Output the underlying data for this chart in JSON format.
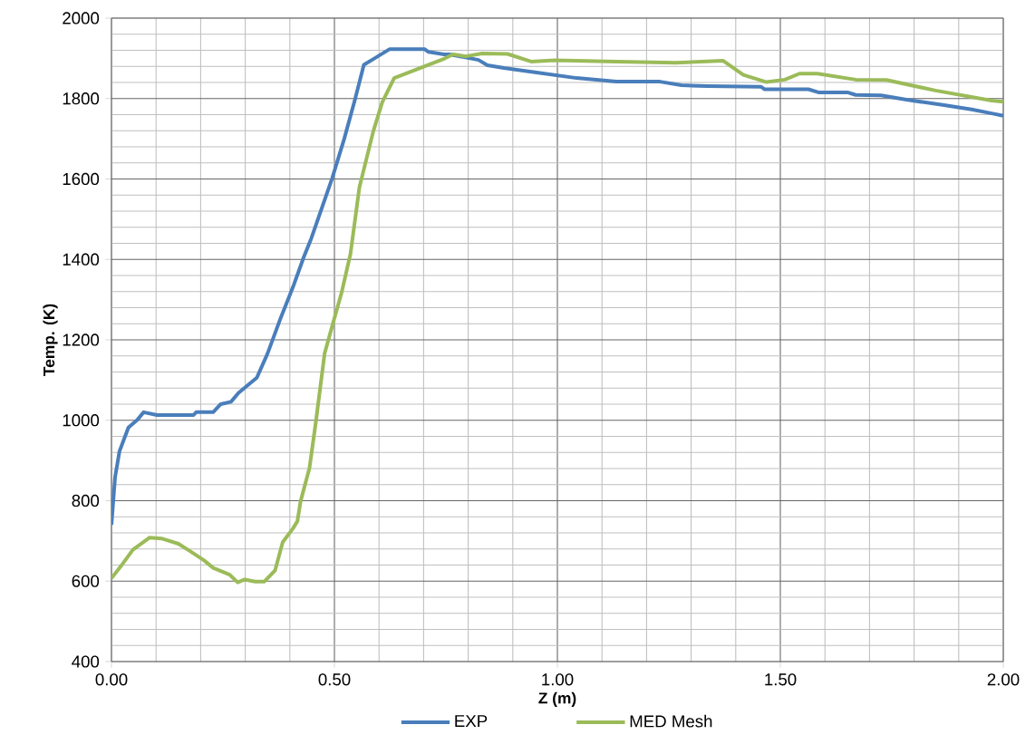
{
  "chart_data": {
    "type": "line",
    "xlabel": "Z (m)",
    "ylabel": "Temp. (K)",
    "xlim": [
      0,
      2
    ],
    "ylim": [
      400,
      2000
    ],
    "xticks": [
      {
        "value": 0,
        "label": "0.00"
      },
      {
        "value": 0.5,
        "label": "0.50"
      },
      {
        "value": 1,
        "label": "1.00"
      },
      {
        "value": 1.5,
        "label": "1.50"
      },
      {
        "value": 2,
        "label": "2.00"
      }
    ],
    "yticks": [
      400,
      600,
      800,
      1000,
      1200,
      1400,
      1600,
      1800,
      2000
    ],
    "grid": true,
    "legend": "bottom",
    "series": [
      {
        "name": "EXP",
        "color": "#4a7ebb",
        "x": [
          0,
          0.008,
          0.018,
          0.038,
          0.058,
          0.072,
          0.102,
          0.184,
          0.19,
          0.228,
          0.245,
          0.268,
          0.285,
          0.326,
          0.35,
          0.38,
          0.407,
          0.431,
          0.448,
          0.495,
          0.522,
          0.546,
          0.566,
          0.59,
          0.624,
          0.702,
          0.711,
          0.746,
          0.758,
          0.823,
          0.843,
          0.88,
          0.953,
          1.043,
          1.132,
          1.23,
          1.278,
          1.335,
          1.457,
          1.465,
          1.563,
          1.587,
          1.652,
          1.669,
          1.726,
          1.783,
          1.864,
          1.929,
          1.974,
          2.0
        ],
        "values": [
          740,
          858,
          923,
          982,
          1001,
          1020,
          1013,
          1013,
          1020,
          1020,
          1040,
          1046,
          1068,
          1106,
          1166,
          1256,
          1331,
          1405,
          1452,
          1602,
          1700,
          1797,
          1884,
          1900,
          1923,
          1923,
          1916,
          1910,
          1910,
          1896,
          1883,
          1876,
          1865,
          1851,
          1842,
          1842,
          1833,
          1831,
          1829,
          1823,
          1823,
          1815,
          1815,
          1809,
          1808,
          1797,
          1784,
          1773,
          1763,
          1757
        ]
      },
      {
        "name": "MED Mesh",
        "color": "#9bbb59",
        "x": [
          0,
          0.021,
          0.048,
          0.085,
          0.112,
          0.15,
          0.177,
          0.207,
          0.228,
          0.265,
          0.283,
          0.299,
          0.322,
          0.343,
          0.367,
          0.384,
          0.407,
          0.417,
          0.424,
          0.444,
          0.458,
          0.478,
          0.495,
          0.516,
          0.536,
          0.556,
          0.587,
          0.607,
          0.634,
          0.692,
          0.746,
          0.766,
          0.795,
          0.831,
          0.888,
          0.941,
          0.994,
          1.132,
          1.266,
          1.372,
          1.417,
          1.469,
          1.51,
          1.543,
          1.583,
          1.669,
          1.738,
          1.848,
          1.974,
          2.0
        ],
        "values": [
          607,
          637,
          678,
          708,
          706,
          693,
          674,
          652,
          633,
          616,
          597,
          604,
          599,
          599,
          627,
          697,
          731,
          749,
          798,
          881,
          993,
          1166,
          1234,
          1317,
          1414,
          1579,
          1718,
          1790,
          1851,
          1876,
          1899,
          1910,
          1905,
          1912,
          1911,
          1892,
          1895,
          1892,
          1889,
          1894,
          1859,
          1841,
          1847,
          1862,
          1862,
          1847,
          1846,
          1820,
          1795,
          1792
        ]
      }
    ]
  }
}
